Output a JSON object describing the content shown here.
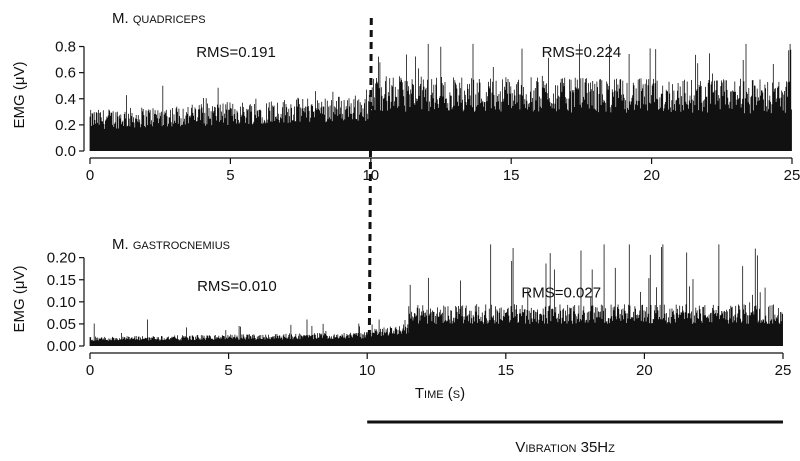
{
  "chart_data": [
    {
      "type": "area",
      "title": "M. quadriceps",
      "ylabel": "EMG (μV)",
      "xlabel": "",
      "xlim": [
        0,
        25
      ],
      "ylim": [
        0,
        0.85
      ],
      "x_ticks": [
        0,
        5,
        10,
        15,
        20,
        25
      ],
      "y_ticks": [
        0.0,
        0.2,
        0.4,
        0.6,
        0.8
      ],
      "y_tick_labels": [
        "0.0",
        "0.2",
        "0.4",
        "0.6",
        "0.8"
      ],
      "grid": false,
      "event_line_x": 10,
      "annotations": [
        {
          "text": "RMS=0.191",
          "x": 5.2,
          "y": 0.72
        },
        {
          "text": "RMS=0.224",
          "x": 17.5,
          "y": 0.72
        }
      ],
      "signal": {
        "segments": [
          {
            "x_start": 0,
            "x_end": 10,
            "envelope_start": 0.3,
            "envelope_end": 0.42,
            "peak": 0.5
          },
          {
            "x_start": 10,
            "x_end": 25,
            "envelope_start": 0.55,
            "envelope_end": 0.52,
            "peak": 0.82
          }
        ]
      }
    },
    {
      "type": "area",
      "title": "M. gastrocnemius",
      "ylabel": "EMG (μV)",
      "xlabel": "Time (s)",
      "xlim": [
        0,
        25
      ],
      "ylim": [
        0,
        0.24
      ],
      "x_ticks": [
        0,
        5,
        10,
        15,
        20,
        25
      ],
      "y_ticks": [
        0.0,
        0.05,
        0.1,
        0.15,
        0.2
      ],
      "y_tick_labels": [
        "0.00",
        "0.05",
        "0.10",
        "0.15",
        "0.20"
      ],
      "grid": false,
      "event_line_x": 10,
      "annotations": [
        {
          "text": "RMS=0.010",
          "x": 5.3,
          "y": 0.125
        },
        {
          "text": "RMS=0.027",
          "x": 17.0,
          "y": 0.11
        }
      ],
      "signal": {
        "segments": [
          {
            "x_start": 0,
            "x_end": 10,
            "envelope_start": 0.02,
            "envelope_end": 0.03,
            "peak": 0.06
          },
          {
            "x_start": 10,
            "x_end": 11.5,
            "envelope_start": 0.035,
            "envelope_end": 0.05,
            "peak": 0.06
          },
          {
            "x_start": 11.5,
            "x_end": 25,
            "envelope_start": 0.09,
            "envelope_end": 0.09,
            "peak": 0.23
          }
        ]
      }
    }
  ],
  "stimulus": {
    "label": "Vibration 35Hz",
    "x_start": 10,
    "x_end": 25
  }
}
